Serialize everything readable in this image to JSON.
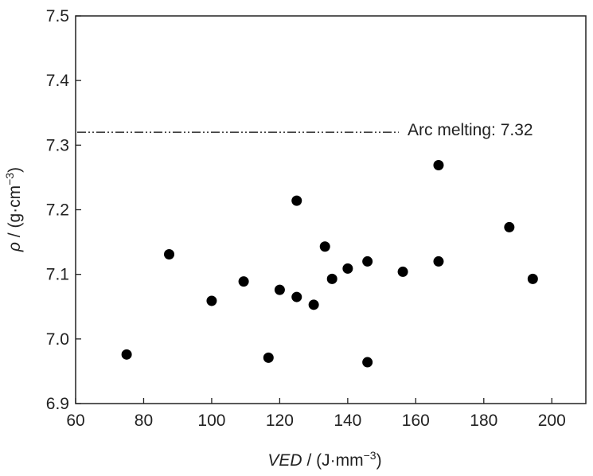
{
  "chart_data": {
    "type": "scatter",
    "xlabel": {
      "italic": "VED",
      "rest": " / (J·mm",
      "sup": "−3",
      "close": ")"
    },
    "ylabel": {
      "italic": "ρ",
      "rest": " / (g·cm",
      "sup": "−3",
      "close": ")"
    },
    "xlim": [
      60,
      210
    ],
    "ylim": [
      6.9,
      7.5
    ],
    "x_ticks": [
      60,
      80,
      100,
      120,
      140,
      160,
      180,
      200
    ],
    "y_ticks": [
      6.9,
      7.0,
      7.1,
      7.2,
      7.3,
      7.4,
      7.5
    ],
    "x_tick_labels": [
      "60",
      "80",
      "100",
      "120",
      "140",
      "160",
      "180",
      "200"
    ],
    "y_tick_labels": [
      "6.9",
      "7.0",
      "7.1",
      "7.2",
      "7.3",
      "7.4",
      "7.5"
    ],
    "grid": false,
    "legend": "none",
    "reference_line": {
      "y": 7.32,
      "x_end": 155,
      "style": "dash-dot-dot",
      "label": "Arc melting: 7.32"
    },
    "points": [
      {
        "x": 75,
        "y": 6.976
      },
      {
        "x": 87.5,
        "y": 7.131
      },
      {
        "x": 100,
        "y": 7.059
      },
      {
        "x": 109.4,
        "y": 7.089
      },
      {
        "x": 116.7,
        "y": 6.971
      },
      {
        "x": 120,
        "y": 7.076
      },
      {
        "x": 125,
        "y": 7.214
      },
      {
        "x": 125,
        "y": 7.065
      },
      {
        "x": 130,
        "y": 7.053
      },
      {
        "x": 133.3,
        "y": 7.143
      },
      {
        "x": 135.4,
        "y": 7.093
      },
      {
        "x": 140,
        "y": 7.109
      },
      {
        "x": 145.8,
        "y": 7.12
      },
      {
        "x": 145.8,
        "y": 6.964
      },
      {
        "x": 156.2,
        "y": 7.104
      },
      {
        "x": 166.7,
        "y": 7.269
      },
      {
        "x": 166.7,
        "y": 7.12
      },
      {
        "x": 187.5,
        "y": 7.173
      },
      {
        "x": 194.4,
        "y": 7.093
      }
    ],
    "marker_color": "#000000",
    "axis_color": "#222222"
  }
}
